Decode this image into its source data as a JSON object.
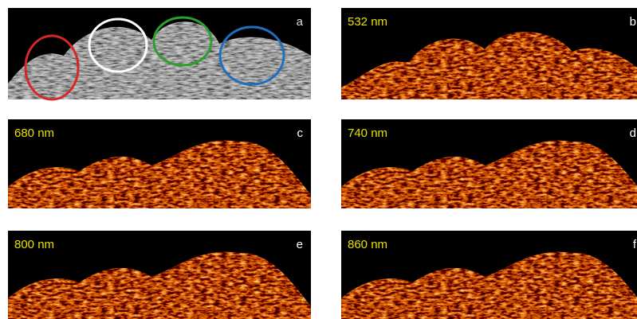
{
  "panels": [
    {
      "letter": "a"
    },
    {
      "letter": "b",
      "wavelength": "532 nm"
    },
    {
      "letter": "c",
      "wavelength": "680 nm"
    },
    {
      "letter": "d",
      "wavelength": "740 nm"
    },
    {
      "letter": "e",
      "wavelength": "800 nm"
    },
    {
      "letter": "f",
      "wavelength": "860 nm"
    }
  ]
}
